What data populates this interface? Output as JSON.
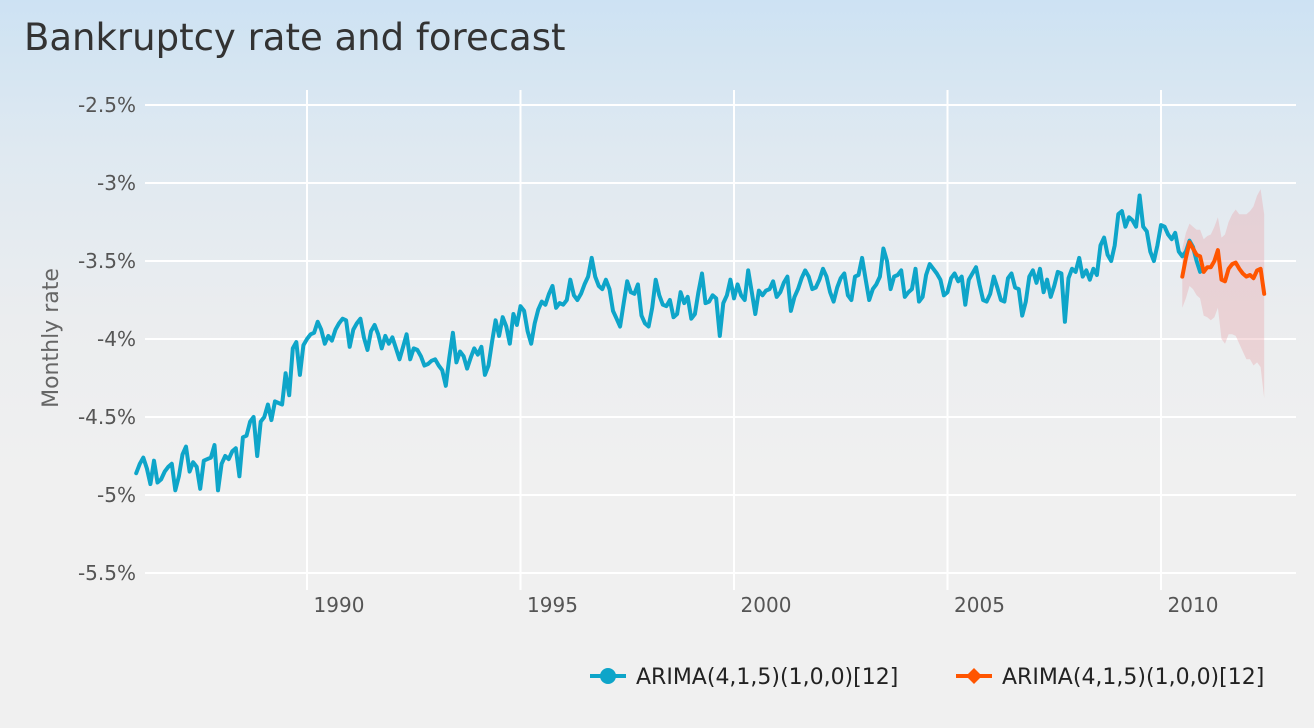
{
  "chart_data": {
    "type": "line",
    "title": "Bankruptcy rate and forecast",
    "xlabel": "",
    "ylabel": "Monthly rate",
    "xlim": [
      1986,
      2012.5
    ],
    "ylim": [
      -5.7,
      -2.5
    ],
    "x_ticks": [
      1990,
      1995,
      2000,
      2005,
      2010
    ],
    "y_ticks": [
      -2.5,
      -3,
      -3.5,
      -4,
      -4.5,
      -5,
      -5.5
    ],
    "y_tick_labels": [
      "-2.5%",
      "-3%",
      "-3.5%",
      "-4%",
      "-4.5%",
      "-5%",
      "-5.5%"
    ],
    "grid": true,
    "legend_position": "bottom-right",
    "series": [
      {
        "name": "ARIMA(4,1,5)(1,0,0)[12]",
        "color": "#0ea5c9",
        "start_year": 1986.0,
        "step_years": 0.0833333,
        "values": [
          -4.86,
          -4.8,
          -4.76,
          -4.83,
          -4.93,
          -4.78,
          -4.92,
          -4.9,
          -4.85,
          -4.82,
          -4.8,
          -4.97,
          -4.88,
          -4.74,
          -4.69,
          -4.85,
          -4.79,
          -4.82,
          -4.96,
          -4.78,
          -4.77,
          -4.76,
          -4.68,
          -4.97,
          -4.8,
          -4.75,
          -4.77,
          -4.72,
          -4.7,
          -4.88,
          -4.63,
          -4.62,
          -4.53,
          -4.5,
          -4.75,
          -4.53,
          -4.5,
          -4.42,
          -4.52,
          -4.4,
          -4.41,
          -4.42,
          -4.22,
          -4.36,
          -4.06,
          -4.02,
          -4.23,
          -4.04,
          -4.0,
          -3.97,
          -3.96,
          -3.89,
          -3.94,
          -4.03,
          -3.98,
          -4.01,
          -3.94,
          -3.9,
          -3.87,
          -3.88,
          -4.05,
          -3.94,
          -3.9,
          -3.87,
          -3.99,
          -4.07,
          -3.95,
          -3.91,
          -3.97,
          -4.06,
          -3.98,
          -4.03,
          -3.99,
          -4.06,
          -4.13,
          -4.05,
          -3.97,
          -4.13,
          -4.06,
          -4.07,
          -4.11,
          -4.17,
          -4.16,
          -4.14,
          -4.13,
          -4.17,
          -4.2,
          -4.3,
          -4.12,
          -3.96,
          -4.15,
          -4.08,
          -4.11,
          -4.19,
          -4.12,
          -4.06,
          -4.1,
          -4.05,
          -4.23,
          -4.17,
          -4.02,
          -3.88,
          -3.98,
          -3.86,
          -3.92,
          -4.03,
          -3.84,
          -3.91,
          -3.79,
          -3.82,
          -3.95,
          -4.03,
          -3.9,
          -3.81,
          -3.76,
          -3.78,
          -3.71,
          -3.66,
          -3.8,
          -3.77,
          -3.78,
          -3.75,
          -3.62,
          -3.72,
          -3.75,
          -3.71,
          -3.65,
          -3.6,
          -3.48,
          -3.6,
          -3.66,
          -3.68,
          -3.62,
          -3.68,
          -3.82,
          -3.87,
          -3.92,
          -3.77,
          -3.63,
          -3.7,
          -3.71,
          -3.65,
          -3.85,
          -3.9,
          -3.92,
          -3.8,
          -3.62,
          -3.72,
          -3.78,
          -3.79,
          -3.75,
          -3.86,
          -3.84,
          -3.7,
          -3.77,
          -3.73,
          -3.87,
          -3.84,
          -3.7,
          -3.58,
          -3.77,
          -3.76,
          -3.72,
          -3.74,
          -3.98,
          -3.77,
          -3.72,
          -3.62,
          -3.74,
          -3.65,
          -3.72,
          -3.75,
          -3.56,
          -3.7,
          -3.84,
          -3.69,
          -3.72,
          -3.69,
          -3.68,
          -3.63,
          -3.73,
          -3.7,
          -3.64,
          -3.6,
          -3.82,
          -3.73,
          -3.68,
          -3.61,
          -3.56,
          -3.6,
          -3.68,
          -3.67,
          -3.62,
          -3.55,
          -3.6,
          -3.7,
          -3.76,
          -3.67,
          -3.61,
          -3.58,
          -3.72,
          -3.75,
          -3.6,
          -3.59,
          -3.48,
          -3.62,
          -3.75,
          -3.68,
          -3.65,
          -3.6,
          -3.42,
          -3.5,
          -3.68,
          -3.6,
          -3.59,
          -3.56,
          -3.73,
          -3.7,
          -3.68,
          -3.55,
          -3.76,
          -3.73,
          -3.59,
          -3.52,
          -3.55,
          -3.58,
          -3.62,
          -3.72,
          -3.7,
          -3.61,
          -3.58,
          -3.63,
          -3.6,
          -3.78,
          -3.62,
          -3.58,
          -3.54,
          -3.65,
          -3.75,
          -3.76,
          -3.71,
          -3.6,
          -3.67,
          -3.75,
          -3.76,
          -3.61,
          -3.58,
          -3.67,
          -3.68,
          -3.85,
          -3.76,
          -3.6,
          -3.56,
          -3.64,
          -3.55,
          -3.7,
          -3.62,
          -3.73,
          -3.66,
          -3.57,
          -3.58,
          -3.89,
          -3.61,
          -3.55,
          -3.57,
          -3.48,
          -3.6,
          -3.56,
          -3.62,
          -3.55,
          -3.59,
          -3.4,
          -3.35,
          -3.46,
          -3.5,
          -3.4,
          -3.2,
          -3.18,
          -3.28,
          -3.22,
          -3.24,
          -3.28,
          -3.08,
          -3.28,
          -3.31,
          -3.44,
          -3.5,
          -3.4,
          -3.27,
          -3.28,
          -3.33,
          -3.36,
          -3.32,
          -3.44,
          -3.47,
          -3.44,
          -3.37,
          -3.41,
          -3.5,
          -3.57
        ]
      },
      {
        "name": "ARIMA(4,1,5)(1,0,0)[12]",
        "color": "#ff5500",
        "start_year": 2010.5,
        "step_years": 0.0833333,
        "values": [
          -3.6,
          -3.48,
          -3.38,
          -3.42,
          -3.46,
          -3.47,
          -3.57,
          -3.54,
          -3.54,
          -3.5,
          -3.43,
          -3.62,
          -3.63,
          -3.55,
          -3.52,
          -3.51,
          -3.55,
          -3.58,
          -3.6,
          -3.59,
          -3.61,
          -3.56,
          -3.55,
          -3.71
        ],
        "band_upper": [
          -3.42,
          -3.32,
          -3.26,
          -3.28,
          -3.3,
          -3.3,
          -3.36,
          -3.34,
          -3.33,
          -3.28,
          -3.22,
          -3.35,
          -3.33,
          -3.25,
          -3.2,
          -3.17,
          -3.2,
          -3.2,
          -3.2,
          -3.18,
          -3.15,
          -3.08,
          -3.04,
          -3.2
        ],
        "band_lower": [
          -3.8,
          -3.74,
          -3.66,
          -3.68,
          -3.72,
          -3.74,
          -3.85,
          -3.86,
          -3.88,
          -3.86,
          -3.8,
          -4.0,
          -4.03,
          -3.97,
          -3.97,
          -3.98,
          -4.03,
          -4.08,
          -4.13,
          -4.13,
          -4.17,
          -4.15,
          -4.18,
          -4.38
        ],
        "band_color": "#e9a0a5"
      }
    ]
  }
}
